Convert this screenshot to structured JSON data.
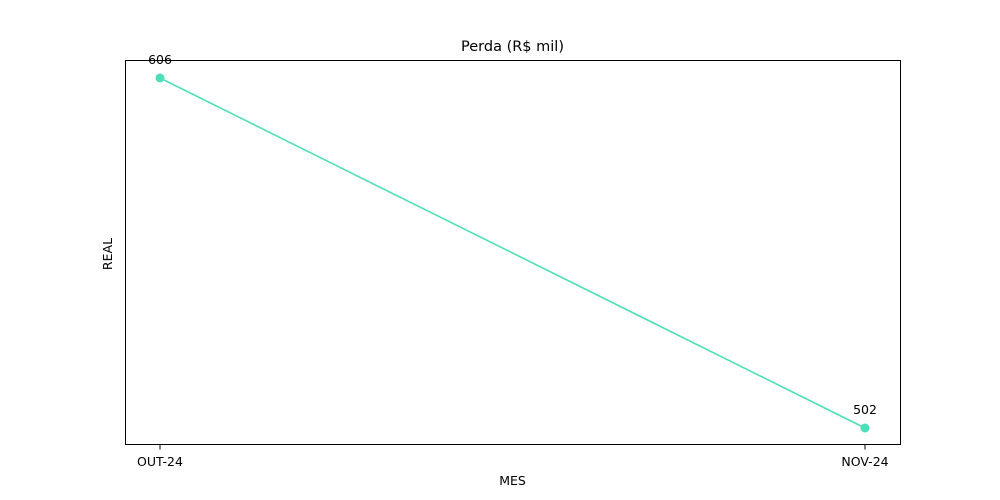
{
  "chart_data": {
    "type": "line",
    "title": "Perda (R$ mil)",
    "xlabel": "MES",
    "ylabel": "REAL",
    "categories": [
      "OUT-24",
      "NOV-24"
    ],
    "series": [
      {
        "values": [
          606,
          502
        ],
        "data_labels": [
          "606",
          "502"
        ],
        "color": "#4fdfb8"
      }
    ],
    "y_ticks_shown": false,
    "grid": false,
    "legend": "none"
  }
}
